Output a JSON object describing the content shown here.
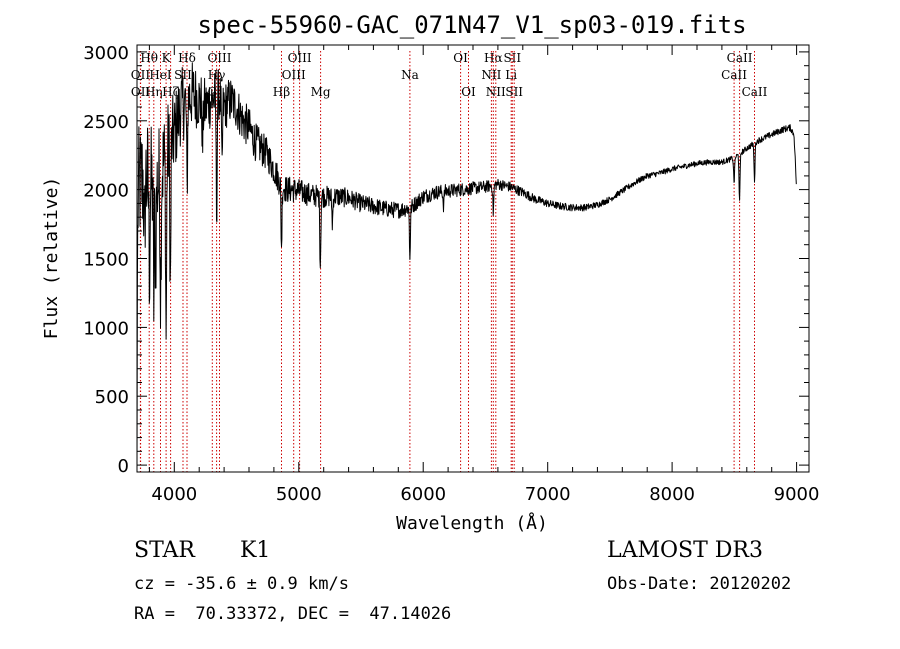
{
  "chart_data": {
    "type": "line",
    "title": "spec-55960-GAC_071N47_V1_sp03-019.fits",
    "xlabel": "Wavelength (Å)",
    "ylabel": "Flux (relative)",
    "xlim": [
      3700,
      9100
    ],
    "ylim": [
      -50,
      3050
    ],
    "xticks": [
      4000,
      5000,
      6000,
      7000,
      8000,
      9000
    ],
    "xtick_labels": [
      "4000",
      "5000",
      "6000",
      "7000",
      "8000",
      "9000"
    ],
    "yticks": [
      0,
      500,
      1000,
      1500,
      2000,
      2500,
      3000
    ],
    "ytick_labels": [
      "0",
      "500",
      "1000",
      "1500",
      "2000",
      "2500",
      "3000"
    ],
    "continuum": [
      [
        3700,
        0
      ],
      [
        3702,
        1200
      ],
      [
        3710,
        2000
      ],
      [
        3760,
        2100
      ],
      [
        3800,
        2050
      ],
      [
        3850,
        2000
      ],
      [
        3900,
        2150
      ],
      [
        3950,
        2300
      ],
      [
        4000,
        2400
      ],
      [
        4050,
        2600
      ],
      [
        4100,
        2650
      ],
      [
        4150,
        2700
      ],
      [
        4200,
        2650
      ],
      [
        4250,
        2600
      ],
      [
        4300,
        2650
      ],
      [
        4350,
        2700
      ],
      [
        4400,
        2600
      ],
      [
        4450,
        2650
      ],
      [
        4500,
        2600
      ],
      [
        4550,
        2500
      ],
      [
        4600,
        2450
      ],
      [
        4650,
        2350
      ],
      [
        4700,
        2300
      ],
      [
        4750,
        2250
      ],
      [
        4800,
        2150
      ],
      [
        4850,
        2050
      ],
      [
        4900,
        2000
      ],
      [
        4950,
        2000
      ],
      [
        5000,
        1990
      ],
      [
        5100,
        1960
      ],
      [
        5200,
        1950
      ],
      [
        5300,
        1950
      ],
      [
        5400,
        1940
      ],
      [
        5500,
        1900
      ],
      [
        5600,
        1880
      ],
      [
        5700,
        1860
      ],
      [
        5800,
        1850
      ],
      [
        5900,
        1870
      ],
      [
        6000,
        1950
      ],
      [
        6100,
        1980
      ],
      [
        6200,
        1990
      ],
      [
        6300,
        2000
      ],
      [
        6400,
        2010
      ],
      [
        6500,
        2020
      ],
      [
        6600,
        2040
      ],
      [
        6700,
        2020
      ],
      [
        6800,
        1980
      ],
      [
        6900,
        1930
      ],
      [
        7000,
        1900
      ],
      [
        7100,
        1880
      ],
      [
        7200,
        1870
      ],
      [
        7300,
        1870
      ],
      [
        7400,
        1890
      ],
      [
        7500,
        1930
      ],
      [
        7600,
        1990
      ],
      [
        7700,
        2050
      ],
      [
        7800,
        2100
      ],
      [
        7900,
        2120
      ],
      [
        8000,
        2150
      ],
      [
        8100,
        2170
      ],
      [
        8200,
        2190
      ],
      [
        8300,
        2200
      ],
      [
        8400,
        2200
      ],
      [
        8500,
        2230
      ],
      [
        8600,
        2300
      ],
      [
        8700,
        2360
      ],
      [
        8800,
        2400
      ],
      [
        8900,
        2440
      ],
      [
        8950,
        2450
      ],
      [
        8980,
        2400
      ],
      [
        8995,
        2100
      ],
      [
        9000,
        2000
      ]
    ],
    "noise_amplitude": [
      [
        3700,
        450
      ],
      [
        3800,
        450
      ],
      [
        3900,
        400
      ],
      [
        4000,
        300
      ],
      [
        4200,
        220
      ],
      [
        4400,
        180
      ],
      [
        4600,
        150
      ],
      [
        4800,
        110
      ],
      [
        5000,
        90
      ],
      [
        5500,
        65
      ],
      [
        6000,
        55
      ],
      [
        6500,
        45
      ],
      [
        7000,
        28
      ],
      [
        7500,
        22
      ],
      [
        8000,
        20
      ],
      [
        8500,
        20
      ],
      [
        9000,
        25
      ]
    ],
    "absorption_features": [
      [
        3760,
        500
      ],
      [
        3800,
        600
      ],
      [
        3835,
        800
      ],
      [
        3850,
        500
      ],
      [
        3890,
        850
      ],
      [
        3934,
        1300
      ],
      [
        3968,
        1100
      ],
      [
        4102,
        650
      ],
      [
        4227,
        300
      ],
      [
        4340,
        850
      ],
      [
        4383,
        500
      ],
      [
        4861,
        450
      ],
      [
        5173,
        500
      ],
      [
        5270,
        200
      ],
      [
        5893,
        350
      ],
      [
        6163,
        100
      ],
      [
        6563,
        200
      ],
      [
        8498,
        180
      ],
      [
        8542,
        350
      ],
      [
        8662,
        270
      ]
    ],
    "spectral_lines": [
      {
        "label": "Hθ",
        "wavelength": 3798,
        "row": 1
      },
      {
        "label": "OII",
        "wavelength": 3727,
        "row": 2
      },
      {
        "label": "OII",
        "wavelength": 3729,
        "row": 3
      },
      {
        "label": "Hη",
        "wavelength": 3835,
        "row": 3
      },
      {
        "label": "K",
        "wavelength": 3934,
        "row": 1
      },
      {
        "label": "HeI",
        "wavelength": 3889,
        "row": 2
      },
      {
        "label": "Hζ",
        "wavelength": 3970,
        "row": 3
      },
      {
        "label": "SII",
        "wavelength": 4070,
        "row": 2
      },
      {
        "label": "Hδ",
        "wavelength": 4102,
        "row": 1
      },
      {
        "label": "OIII",
        "wavelength": 4363,
        "row": 1
      },
      {
        "label": "Hγ",
        "wavelength": 4340,
        "row": 2
      },
      {
        "label": "G",
        "wavelength": 4305,
        "row": 3
      },
      {
        "label": "OIII",
        "wavelength": 5007,
        "row": 1
      },
      {
        "label": "OIII",
        "wavelength": 4959,
        "row": 2
      },
      {
        "label": "Hβ",
        "wavelength": 4861,
        "row": 3
      },
      {
        "label": "Mg",
        "wavelength": 5175,
        "row": 3
      },
      {
        "label": "Na",
        "wavelength": 5893,
        "row": 2
      },
      {
        "label": "OI",
        "wavelength": 6300,
        "row": 1
      },
      {
        "label": "OI",
        "wavelength": 6364,
        "row": 3
      },
      {
        "label": "Hα",
        "wavelength": 6563,
        "row": 1
      },
      {
        "label": "NII",
        "wavelength": 6548,
        "row": 2
      },
      {
        "label": "NII",
        "wavelength": 6583,
        "row": 3
      },
      {
        "label": "SII",
        "wavelength": 6716,
        "row": 1
      },
      {
        "label": "Li",
        "wavelength": 6707,
        "row": 2
      },
      {
        "label": "SII",
        "wavelength": 6731,
        "row": 3
      },
      {
        "label": "CaII",
        "wavelength": 8542,
        "row": 1
      },
      {
        "label": "CaII",
        "wavelength": 8498,
        "row": 2
      },
      {
        "label": "CaII",
        "wavelength": 8662,
        "row": 3
      }
    ],
    "colors": {
      "spectrum": "#000000",
      "line_markers": "#cc0000",
      "axes": "#000000"
    }
  },
  "info": {
    "class": "STAR",
    "subclass": "K1",
    "survey": "LAMOST DR3",
    "cz": "cz = -35.6 ± 0.9 km/s",
    "obs_date": "Obs-Date: 20120202",
    "radec": "RA =  70.33372, DEC =  47.14026"
  }
}
